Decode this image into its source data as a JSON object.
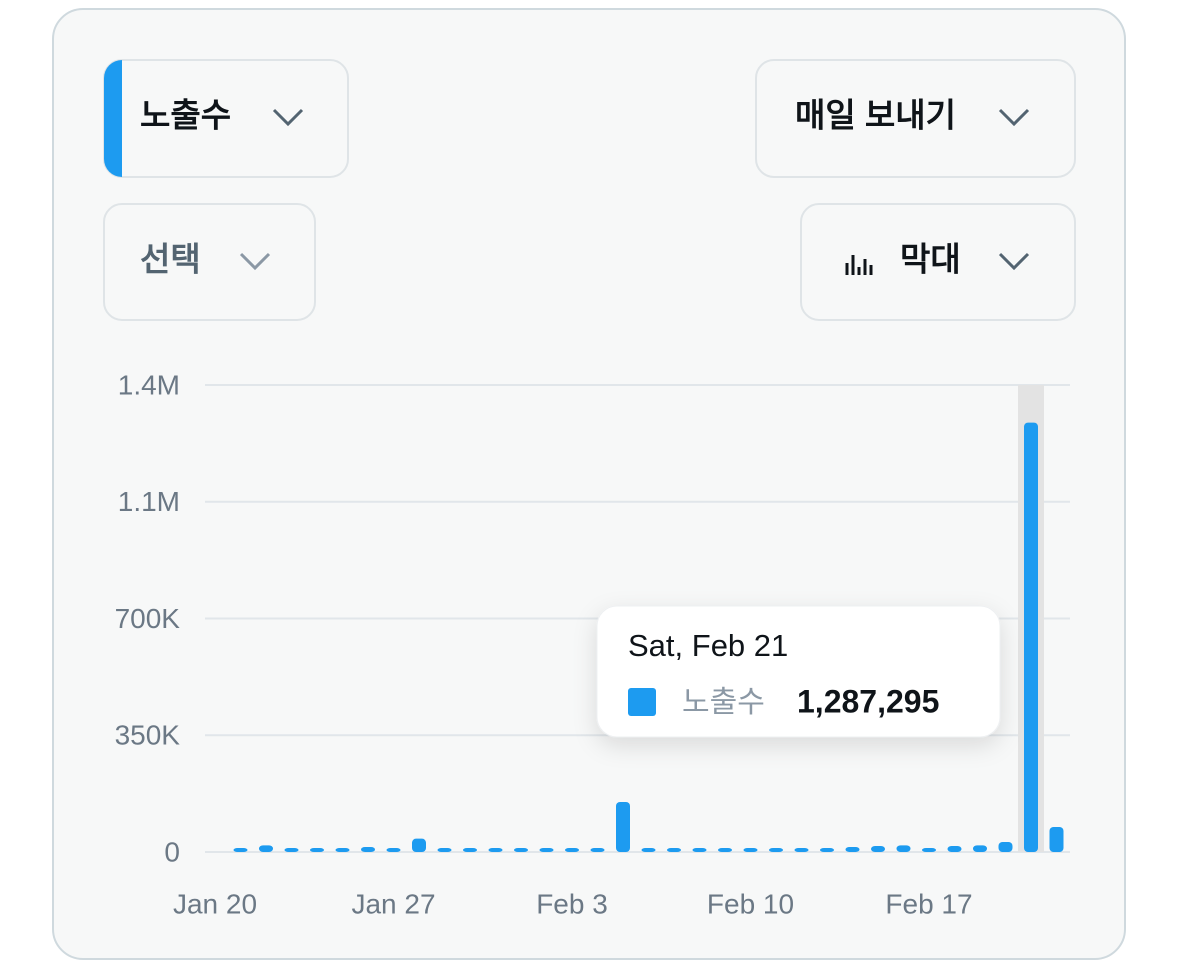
{
  "controls": {
    "metric": "노출수",
    "export": "매일 보내기",
    "select": "선택",
    "chart_kind": "막대"
  },
  "chart_data": {
    "type": "bar",
    "categories": [
      "Jan 20",
      null,
      null,
      null,
      null,
      null,
      null,
      "Jan 27",
      null,
      null,
      null,
      null,
      null,
      null,
      "Feb 3",
      null,
      null,
      null,
      null,
      null,
      null,
      "Feb 10",
      null,
      null,
      null,
      null,
      null,
      null,
      "Feb 17",
      null,
      null,
      null,
      null,
      null
    ],
    "series": [
      {
        "name": "노출수",
        "color": "#1d9bf0",
        "values": [
          0,
          5000,
          20000,
          5000,
          5000,
          8000,
          15000,
          8000,
          40000,
          12000,
          8000,
          5000,
          4000,
          4000,
          5000,
          12000,
          150000,
          6000,
          4000,
          4000,
          4000,
          4000,
          5000,
          12000,
          12000,
          15000,
          18000,
          20000,
          10000,
          18000,
          20000,
          30000,
          1287295,
          75000
        ]
      }
    ],
    "ylim": [
      0,
      1400000
    ],
    "yticks": [
      0,
      {
        "value": 350000,
        "label": "350K"
      },
      {
        "value": 700000,
        "label": "700K"
      },
      {
        "value": 1050000,
        "label": "1.1M"
      },
      {
        "value": 1400000,
        "label": "1.4M"
      }
    ],
    "grid": true,
    "tooltip": {
      "title": "Sat, Feb 21",
      "value_label": "1,287,295"
    }
  }
}
